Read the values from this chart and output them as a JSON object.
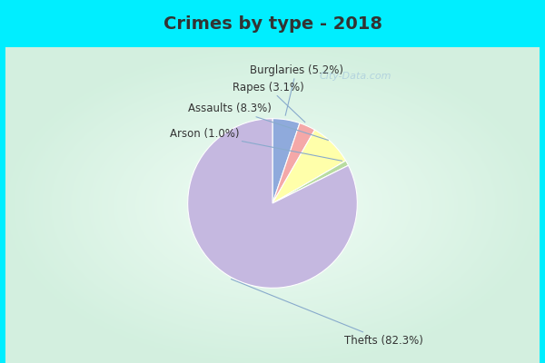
{
  "title": "Crimes by type - 2018",
  "plot_labels": [
    "Burglaries",
    "Rapes",
    "Assaults",
    "Arson",
    "Thefts"
  ],
  "plot_values": [
    5.2,
    3.1,
    8.3,
    1.0,
    82.3
  ],
  "plot_colors": [
    "#8faadc",
    "#f4a8a8",
    "#ffffaa",
    "#b8dca0",
    "#c5b8e0"
  ],
  "label_texts": [
    "Burglaries (5.2%)",
    "Rapes (3.1%)",
    "Assaults (8.3%)",
    "Arson (1.0%)",
    "Thefts (82.3%)"
  ],
  "bg_cyan": "#00eeff",
  "bg_gradient_left": "#c8ecd8",
  "bg_gradient_right": "#e8f8f0",
  "title_fontsize": 14,
  "title_color": "#333333",
  "label_fontsize": 8.5,
  "label_color": "#333333",
  "watermark_text": "City-Data.com",
  "watermark_color": "#aaccdd"
}
